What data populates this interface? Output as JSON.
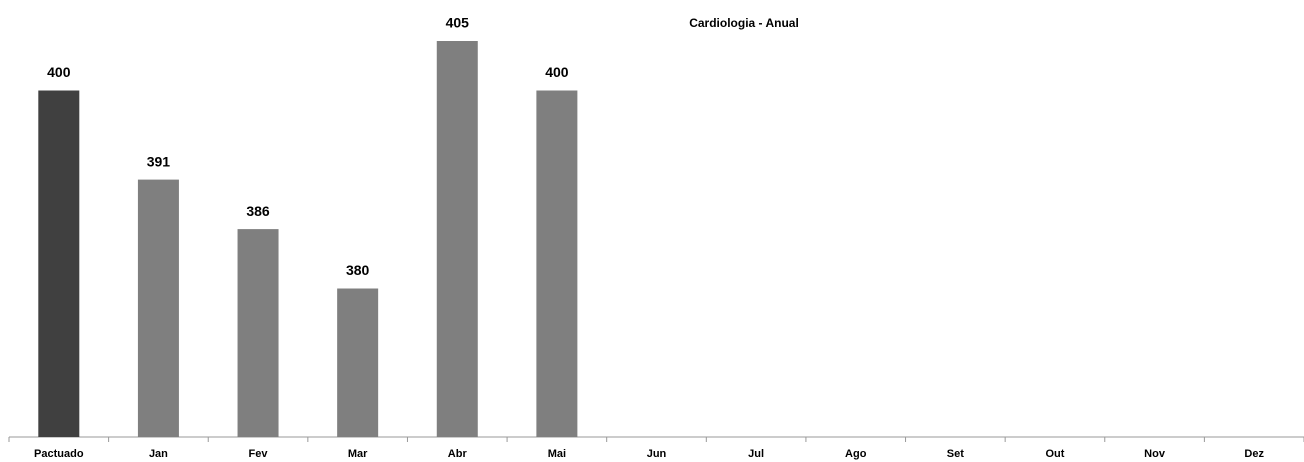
{
  "chart_data": {
    "type": "bar",
    "title": "Cardiologia - Anual",
    "categories": [
      "Pactuado",
      "Jan",
      "Fev",
      "Mar",
      "Abr",
      "Mai",
      "Jun",
      "Jul",
      "Ago",
      "Set",
      "Out",
      "Nov",
      "Dez"
    ],
    "values": [
      400,
      391,
      386,
      380,
      405,
      400,
      null,
      null,
      null,
      null,
      null,
      null,
      null
    ],
    "colors": [
      "#404040",
      "#7f7f7f",
      "#7f7f7f",
      "#7f7f7f",
      "#7f7f7f",
      "#7f7f7f",
      "#7f7f7f",
      "#7f7f7f",
      "#7f7f7f",
      "#7f7f7f",
      "#7f7f7f",
      "#7f7f7f",
      "#7f7f7f"
    ],
    "ylim": [
      365,
      405
    ]
  }
}
